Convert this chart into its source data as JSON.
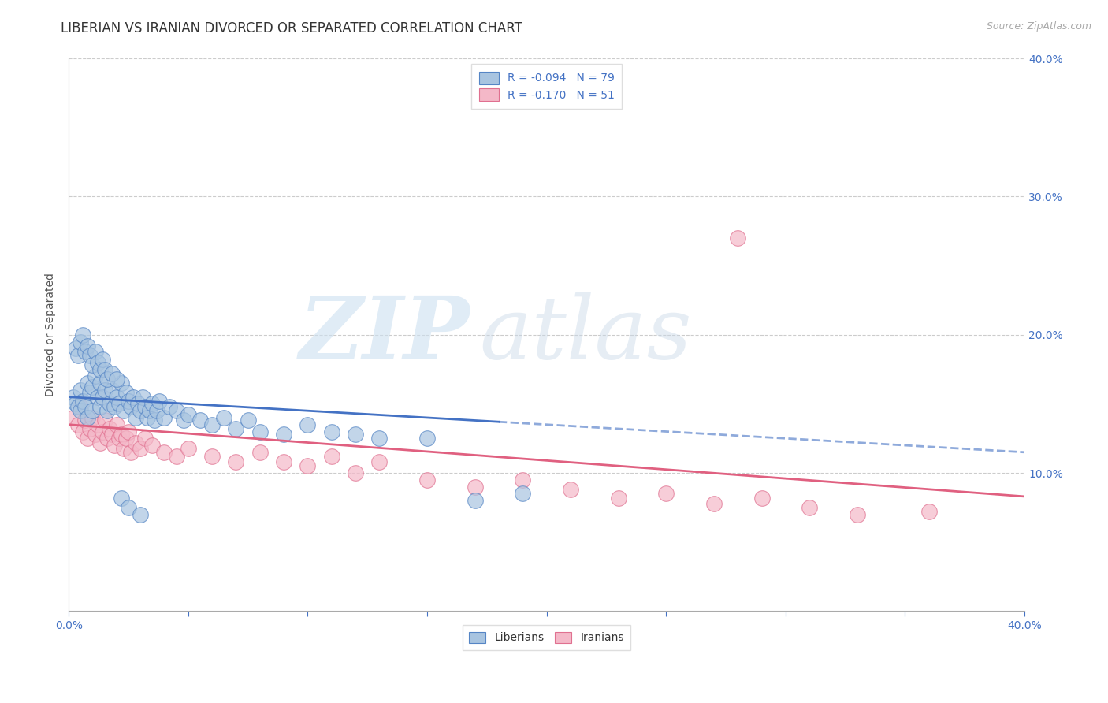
{
  "title": "LIBERIAN VS IRANIAN DIVORCED OR SEPARATED CORRELATION CHART",
  "source": "Source: ZipAtlas.com",
  "ylabel": "Divorced or Separated",
  "xlim": [
    0.0,
    0.4
  ],
  "ylim": [
    0.0,
    0.4
  ],
  "liberian_color": "#a8c4e0",
  "iranian_color": "#f4b8c8",
  "liberian_edge_color": "#5585c5",
  "iranian_edge_color": "#e07090",
  "liberian_line_color": "#4472c4",
  "iranian_line_color": "#e06080",
  "background_color": "#ffffff",
  "grid_color": "#cccccc",
  "title_fontsize": 12,
  "axis_label_fontsize": 10,
  "tick_fontsize": 10,
  "legend_fontsize": 10,
  "liberian_x": [
    0.002,
    0.003,
    0.004,
    0.005,
    0.005,
    0.006,
    0.007,
    0.008,
    0.008,
    0.009,
    0.01,
    0.01,
    0.011,
    0.012,
    0.013,
    0.013,
    0.014,
    0.015,
    0.016,
    0.017,
    0.018,
    0.019,
    0.02,
    0.021,
    0.022,
    0.023,
    0.024,
    0.025,
    0.026,
    0.027,
    0.028,
    0.029,
    0.03,
    0.031,
    0.032,
    0.033,
    0.034,
    0.035,
    0.036,
    0.037,
    0.038,
    0.04,
    0.042,
    0.045,
    0.048,
    0.05,
    0.055,
    0.06,
    0.065,
    0.07,
    0.075,
    0.08,
    0.09,
    0.1,
    0.11,
    0.12,
    0.13,
    0.15,
    0.17,
    0.19,
    0.003,
    0.004,
    0.005,
    0.006,
    0.007,
    0.008,
    0.009,
    0.01,
    0.011,
    0.012,
    0.013,
    0.014,
    0.015,
    0.016,
    0.018,
    0.02,
    0.022,
    0.025,
    0.03
  ],
  "liberian_y": [
    0.155,
    0.15,
    0.148,
    0.16,
    0.145,
    0.152,
    0.148,
    0.165,
    0.14,
    0.158,
    0.162,
    0.145,
    0.17,
    0.155,
    0.148,
    0.165,
    0.155,
    0.16,
    0.145,
    0.15,
    0.16,
    0.148,
    0.155,
    0.15,
    0.165,
    0.145,
    0.158,
    0.152,
    0.148,
    0.155,
    0.14,
    0.15,
    0.145,
    0.155,
    0.148,
    0.14,
    0.145,
    0.15,
    0.138,
    0.145,
    0.152,
    0.14,
    0.148,
    0.145,
    0.138,
    0.142,
    0.138,
    0.135,
    0.14,
    0.132,
    0.138,
    0.13,
    0.128,
    0.135,
    0.13,
    0.128,
    0.125,
    0.125,
    0.08,
    0.085,
    0.19,
    0.185,
    0.195,
    0.2,
    0.188,
    0.192,
    0.185,
    0.178,
    0.188,
    0.18,
    0.175,
    0.182,
    0.175,
    0.168,
    0.172,
    0.168,
    0.082,
    0.075,
    0.07
  ],
  "iranian_x": [
    0.002,
    0.004,
    0.005,
    0.006,
    0.007,
    0.008,
    0.009,
    0.01,
    0.011,
    0.012,
    0.013,
    0.014,
    0.015,
    0.016,
    0.017,
    0.018,
    0.019,
    0.02,
    0.021,
    0.022,
    0.023,
    0.024,
    0.025,
    0.026,
    0.028,
    0.03,
    0.032,
    0.035,
    0.04,
    0.045,
    0.05,
    0.06,
    0.07,
    0.08,
    0.09,
    0.1,
    0.11,
    0.12,
    0.13,
    0.15,
    0.17,
    0.19,
    0.21,
    0.23,
    0.25,
    0.27,
    0.29,
    0.31,
    0.33,
    0.36,
    0.28
  ],
  "iranian_y": [
    0.14,
    0.135,
    0.148,
    0.13,
    0.138,
    0.125,
    0.132,
    0.14,
    0.128,
    0.135,
    0.122,
    0.13,
    0.138,
    0.125,
    0.132,
    0.128,
    0.12,
    0.135,
    0.125,
    0.128,
    0.118,
    0.125,
    0.13,
    0.115,
    0.122,
    0.118,
    0.125,
    0.12,
    0.115,
    0.112,
    0.118,
    0.112,
    0.108,
    0.115,
    0.108,
    0.105,
    0.112,
    0.1,
    0.108,
    0.095,
    0.09,
    0.095,
    0.088,
    0.082,
    0.085,
    0.078,
    0.082,
    0.075,
    0.07,
    0.072,
    0.27
  ],
  "liberian_trend_x": [
    0.0,
    0.2
  ],
  "liberian_trend_y_start": 0.155,
  "liberian_trend_y_end": 0.135,
  "iranian_trend_x": [
    0.0,
    0.4
  ],
  "iranian_trend_y_start": 0.135,
  "iranian_trend_y_end": 0.083,
  "watermark_zip_color": "#d0e4f5",
  "watermark_atlas_color": "#c0cce0"
}
